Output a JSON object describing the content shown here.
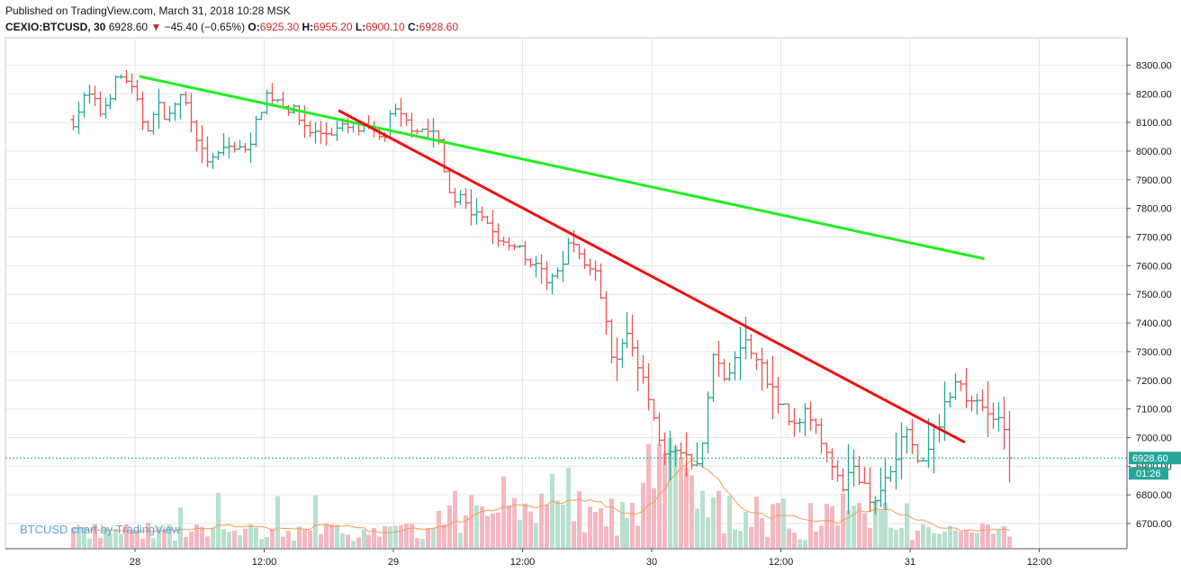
{
  "header": {
    "published": "Published on TradingView.com, March 31, 2018 10:28 MSK",
    "symbol": "CEXIO:BTCUSD, 30",
    "last": "6928.60",
    "change": "−45.40 (−0.65%)",
    "open_label": "O:",
    "open": "6925.30",
    "high_label": "H:",
    "high": "6955.20",
    "low_label": "L:",
    "low": "6900.10",
    "close_label": "C:",
    "close": "6928.60"
  },
  "watermark": "BTCUSD chart by TradingView",
  "price_tag": {
    "price": "6928.60",
    "timer": "01:26",
    "hidden_partial": "69"
  },
  "colors": {
    "up": "#26a69a",
    "down": "#ef5350",
    "green_line": "#22ee22",
    "red_line": "#ee1111",
    "volume_up": "#b9e0cf",
    "volume_down": "#f5b8c0",
    "ma": "#f39c52",
    "grid": "#e6e6e6"
  },
  "chart_data": {
    "type": "ohlc",
    "symbol": "CEXIO:BTCUSD",
    "interval": "30",
    "y_ticks": [
      6700,
      6800,
      6900,
      7000,
      7100,
      7200,
      7300,
      7400,
      7500,
      7600,
      7700,
      7800,
      7900,
      8000,
      8100,
      8200,
      8300
    ],
    "y_tick_labels": [
      "6700.00",
      "6800.00",
      "6900.00",
      "7000.00",
      "7100.00",
      "7200.00",
      "7300.00",
      "7400.00",
      "7500.00",
      "7600.00",
      "7700.00",
      "7800.00",
      "7900.00",
      "8000.00",
      "8100.00",
      "8200.00",
      "8300.00"
    ],
    "ylim": [
      6620,
      8355
    ],
    "x_tick_labels": [
      "28",
      "12:00",
      "29",
      "12:00",
      "30",
      "12:00",
      "31",
      "12:00"
    ],
    "x_tick_hours": [
      0,
      12,
      24,
      36,
      48,
      60,
      72,
      84
    ],
    "xlim_hours": [
      -6.0,
      93.0
    ],
    "price_path": [
      [
        -5.8,
        8110
      ],
      [
        -4.5,
        8200
      ],
      [
        -3.2,
        8130
      ],
      [
        -2.0,
        8230
      ],
      [
        -1.0,
        8270
      ],
      [
        0,
        8180
      ],
      [
        1.0,
        8080
      ],
      [
        2.2,
        8150
      ],
      [
        3.2,
        8120
      ],
      [
        4.0,
        8200
      ],
      [
        5.0,
        8150
      ],
      [
        6.2,
        7990
      ],
      [
        7.2,
        7960
      ],
      [
        8.5,
        8020
      ],
      [
        9.8,
        8000
      ],
      [
        11.0,
        8060
      ],
      [
        12.0,
        8200
      ],
      [
        13.5,
        8180
      ],
      [
        15.0,
        8120
      ],
      [
        16.5,
        8060
      ],
      [
        18.0,
        8070
      ],
      [
        20.0,
        8080
      ],
      [
        21.5,
        8070
      ],
      [
        23.0,
        8040
      ],
      [
        24.0,
        8140
      ],
      [
        25.0,
        8100
      ],
      [
        26.5,
        8080
      ],
      [
        28.0,
        8060
      ],
      [
        29.0,
        7880
      ],
      [
        30.0,
        7830
      ],
      [
        31.5,
        7780
      ],
      [
        33.0,
        7720
      ],
      [
        34.5,
        7660
      ],
      [
        35.5,
        7690
      ],
      [
        36.5,
        7620
      ],
      [
        38.5,
        7550
      ],
      [
        39.5,
        7610
      ],
      [
        40.5,
        7700
      ],
      [
        41.5,
        7620
      ],
      [
        42.5,
        7580
      ],
      [
        43.5,
        7480
      ],
      [
        44.2,
        7260
      ],
      [
        45.0,
        7300
      ],
      [
        45.6,
        7350
      ],
      [
        46.5,
        7280
      ],
      [
        47.5,
        7180
      ],
      [
        48.2,
        7080
      ],
      [
        49.0,
        6960
      ],
      [
        50.5,
        6950
      ],
      [
        52.0,
        6880
      ],
      [
        53.0,
        7050
      ],
      [
        53.8,
        7330
      ],
      [
        55.0,
        7180
      ],
      [
        56.0,
        7290
      ],
      [
        57.0,
        7330
      ],
      [
        58.0,
        7270
      ],
      [
        59.0,
        7180
      ],
      [
        60.0,
        7120
      ],
      [
        61.0,
        7050
      ],
      [
        62.2,
        7080
      ],
      [
        63.0,
        7040
      ],
      [
        64.5,
        6950
      ],
      [
        65.5,
        6800
      ],
      [
        66.5,
        6900
      ],
      [
        67.5,
        6840
      ],
      [
        68.5,
        6780
      ],
      [
        69.5,
        6850
      ],
      [
        70.5,
        6930
      ],
      [
        71.5,
        7020
      ],
      [
        72.5,
        6980
      ],
      [
        73.0,
        6880
      ],
      [
        74.0,
        6990
      ],
      [
        75.5,
        7140
      ],
      [
        76.5,
        7190
      ],
      [
        77.5,
        7130
      ],
      [
        78.5,
        7130
      ],
      [
        79.5,
        7080
      ],
      [
        80.5,
        7060
      ],
      [
        81.0,
        6990
      ],
      [
        81.5,
        6928.6
      ]
    ],
    "volume_ylim": [
      0,
      300
    ],
    "overlays": [
      {
        "name": "green trendline",
        "color": "#22ee22",
        "points": [
          [
            0.5,
            8260
          ],
          [
            78.8,
            7625
          ]
        ]
      },
      {
        "name": "red trendline",
        "color": "#ee1111",
        "points": [
          [
            19.0,
            8140
          ],
          [
            77.0,
            6985
          ]
        ]
      }
    ],
    "last_price": 6928.6
  }
}
